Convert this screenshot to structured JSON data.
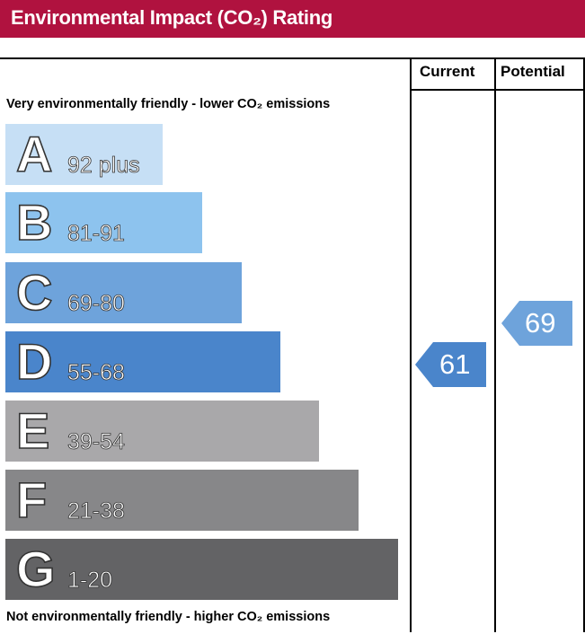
{
  "header": {
    "title": "Environmental Impact (CO₂) Rating"
  },
  "columns": {
    "current": "Current",
    "potential": "Potential"
  },
  "captions": {
    "top": "Very environmentally friendly - lower CO₂ emissions",
    "bottom": "Not environmentally friendly - higher CO₂ emissions"
  },
  "bands": [
    {
      "letter": "A",
      "range": "92 plus",
      "color": "#c6dff5"
    },
    {
      "letter": "B",
      "range": "81-91",
      "color": "#8dc3ee"
    },
    {
      "letter": "C",
      "range": "69-80",
      "color": "#6ea3db"
    },
    {
      "letter": "D",
      "range": "55-68",
      "color": "#4a85cb"
    },
    {
      "letter": "E",
      "range": "39-54",
      "color": "#a9a8aa"
    },
    {
      "letter": "F",
      "range": "21-38",
      "color": "#878789"
    },
    {
      "letter": "G",
      "range": "1-20",
      "color": "#636365"
    }
  ],
  "current": {
    "value": "61",
    "band": "D",
    "color": "#4a85cb"
  },
  "potential": {
    "value": "69",
    "band": "C",
    "color": "#6ea3db"
  }
}
